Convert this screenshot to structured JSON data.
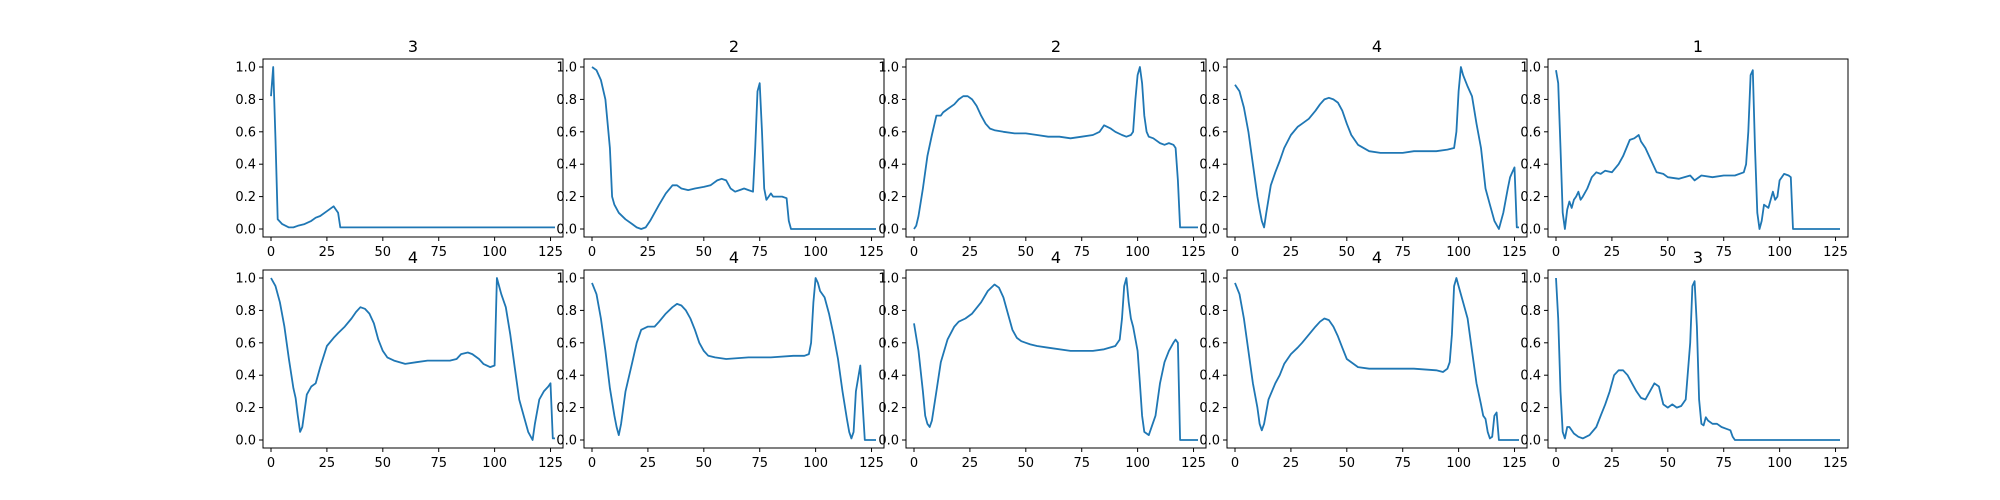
{
  "figure": {
    "line_color": "#1f77b4",
    "axes_color": "#000000"
  },
  "chart_data": [
    {
      "type": "line",
      "title": "3",
      "xlim": [
        0,
        127
      ],
      "ylim": [
        0,
        1
      ],
      "x_ticks": [
        "0",
        "25",
        "50",
        "75",
        "100",
        "125"
      ],
      "y_ticks": [
        "0.0",
        "0.2",
        "0.4",
        "0.6",
        "0.8",
        "1.0"
      ],
      "x": [
        0,
        1,
        2,
        3,
        5,
        8,
        10,
        12,
        15,
        18,
        20,
        22,
        25,
        28,
        29,
        30,
        31,
        33,
        40,
        50,
        60,
        70,
        80,
        90,
        100,
        110,
        120,
        127
      ],
      "y": [
        0.82,
        1.0,
        0.55,
        0.06,
        0.03,
        0.01,
        0.01,
        0.02,
        0.03,
        0.05,
        0.07,
        0.08,
        0.11,
        0.14,
        0.12,
        0.1,
        0.01,
        0.01,
        0.01,
        0.01,
        0.01,
        0.01,
        0.01,
        0.01,
        0.01,
        0.01,
        0.01,
        0.01
      ]
    },
    {
      "type": "line",
      "title": "2",
      "xlim": [
        0,
        127
      ],
      "ylim": [
        0,
        1
      ],
      "x_ticks": [
        "0",
        "25",
        "50",
        "75",
        "100",
        "125"
      ],
      "y_ticks": [
        "0.0",
        "0.2",
        "0.4",
        "0.6",
        "0.8",
        "1.0"
      ],
      "x": [
        0,
        2,
        4,
        6,
        8,
        9,
        10,
        12,
        15,
        18,
        20,
        22,
        24,
        26,
        28,
        30,
        33,
        36,
        38,
        40,
        43,
        46,
        50,
        53,
        56,
        58,
        60,
        62,
        64,
        66,
        68,
        70,
        72,
        73,
        74,
        75,
        76,
        77,
        78,
        79,
        80,
        81,
        83,
        85,
        87,
        88,
        89,
        95,
        100,
        110,
        120,
        127
      ],
      "y": [
        1.0,
        0.98,
        0.92,
        0.8,
        0.5,
        0.2,
        0.15,
        0.1,
        0.06,
        0.03,
        0.01,
        0.0,
        0.01,
        0.05,
        0.1,
        0.15,
        0.22,
        0.27,
        0.27,
        0.25,
        0.24,
        0.25,
        0.26,
        0.27,
        0.3,
        0.31,
        0.3,
        0.25,
        0.23,
        0.24,
        0.25,
        0.24,
        0.23,
        0.5,
        0.85,
        0.9,
        0.6,
        0.25,
        0.18,
        0.2,
        0.22,
        0.2,
        0.2,
        0.2,
        0.19,
        0.05,
        0.0,
        0.0,
        0.0,
        0.0,
        0.0,
        0.0
      ]
    },
    {
      "type": "line",
      "title": "2",
      "xlim": [
        0,
        127
      ],
      "ylim": [
        0,
        1
      ],
      "x_ticks": [
        "0",
        "25",
        "50",
        "75",
        "100",
        "125"
      ],
      "y_ticks": [
        "0.0",
        "0.2",
        "0.4",
        "0.6",
        "0.8",
        "1.0"
      ],
      "x": [
        0,
        1,
        2,
        4,
        6,
        8,
        10,
        12,
        13,
        15,
        18,
        20,
        22,
        24,
        26,
        28,
        30,
        32,
        34,
        36,
        40,
        45,
        50,
        55,
        60,
        65,
        70,
        75,
        80,
        83,
        85,
        88,
        90,
        93,
        95,
        97,
        98,
        99,
        100,
        101,
        102,
        103,
        104,
        105,
        107,
        110,
        112,
        114,
        116,
        117,
        118,
        119,
        120,
        122,
        125,
        127
      ],
      "y": [
        0.0,
        0.02,
        0.08,
        0.25,
        0.45,
        0.58,
        0.7,
        0.7,
        0.72,
        0.74,
        0.77,
        0.8,
        0.82,
        0.82,
        0.8,
        0.76,
        0.7,
        0.65,
        0.62,
        0.61,
        0.6,
        0.59,
        0.59,
        0.58,
        0.57,
        0.57,
        0.56,
        0.57,
        0.58,
        0.6,
        0.64,
        0.62,
        0.6,
        0.58,
        0.57,
        0.58,
        0.6,
        0.8,
        0.95,
        1.0,
        0.9,
        0.7,
        0.6,
        0.57,
        0.56,
        0.53,
        0.52,
        0.53,
        0.52,
        0.5,
        0.3,
        0.01,
        0.01,
        0.01,
        0.01,
        0.01
      ]
    },
    {
      "type": "line",
      "title": "4",
      "xlim": [
        0,
        127
      ],
      "ylim": [
        0,
        1
      ],
      "x_ticks": [
        "0",
        "25",
        "50",
        "75",
        "100",
        "125"
      ],
      "y_ticks": [
        "0.0",
        "0.2",
        "0.4",
        "0.6",
        "0.8",
        "1.0"
      ],
      "x": [
        0,
        2,
        4,
        6,
        8,
        10,
        11,
        12,
        13,
        14,
        16,
        18,
        20,
        22,
        25,
        28,
        30,
        33,
        36,
        38,
        40,
        42,
        44,
        46,
        48,
        50,
        52,
        55,
        60,
        65,
        70,
        75,
        80,
        85,
        90,
        95,
        98,
        99,
        100,
        101,
        102,
        104,
        106,
        108,
        110,
        112,
        114,
        116,
        118,
        120,
        122,
        123,
        124,
        125,
        126,
        127
      ],
      "y": [
        0.89,
        0.85,
        0.75,
        0.6,
        0.4,
        0.2,
        0.12,
        0.05,
        0.01,
        0.1,
        0.27,
        0.35,
        0.42,
        0.5,
        0.58,
        0.63,
        0.65,
        0.68,
        0.73,
        0.77,
        0.8,
        0.81,
        0.8,
        0.78,
        0.73,
        0.65,
        0.58,
        0.52,
        0.48,
        0.47,
        0.47,
        0.47,
        0.48,
        0.48,
        0.48,
        0.49,
        0.5,
        0.6,
        0.85,
        1.0,
        0.95,
        0.88,
        0.82,
        0.65,
        0.5,
        0.25,
        0.15,
        0.05,
        0.0,
        0.1,
        0.25,
        0.32,
        0.35,
        0.38,
        0.01,
        0.01
      ]
    },
    {
      "type": "line",
      "title": "1",
      "xlim": [
        0,
        127
      ],
      "ylim": [
        0,
        1
      ],
      "x_ticks": [
        "0",
        "25",
        "50",
        "75",
        "100",
        "125"
      ],
      "y_ticks": [
        "0.0",
        "0.2",
        "0.4",
        "0.6",
        "0.8",
        "1.0"
      ],
      "x": [
        0,
        1,
        2,
        3,
        4,
        5,
        6,
        7,
        8,
        9,
        10,
        11,
        12,
        14,
        16,
        18,
        20,
        22,
        25,
        28,
        30,
        33,
        35,
        37,
        38,
        40,
        42,
        45,
        48,
        50,
        55,
        60,
        62,
        65,
        70,
        75,
        80,
        84,
        85,
        86,
        87,
        88,
        89,
        90,
        91,
        92,
        93,
        95,
        97,
        98,
        99,
        100,
        102,
        104,
        105,
        106,
        110,
        120,
        127
      ],
      "y": [
        0.98,
        0.9,
        0.5,
        0.1,
        0.0,
        0.12,
        0.17,
        0.13,
        0.18,
        0.2,
        0.23,
        0.18,
        0.2,
        0.25,
        0.32,
        0.35,
        0.34,
        0.36,
        0.35,
        0.4,
        0.45,
        0.55,
        0.56,
        0.58,
        0.54,
        0.5,
        0.44,
        0.35,
        0.34,
        0.32,
        0.31,
        0.33,
        0.3,
        0.33,
        0.32,
        0.33,
        0.33,
        0.35,
        0.4,
        0.6,
        0.95,
        0.98,
        0.5,
        0.1,
        0.0,
        0.05,
        0.15,
        0.13,
        0.23,
        0.18,
        0.2,
        0.3,
        0.34,
        0.33,
        0.32,
        0.0,
        0.0,
        0.0,
        0.0
      ]
    },
    {
      "type": "line",
      "title": "4",
      "xlim": [
        0,
        127
      ],
      "ylim": [
        0,
        1
      ],
      "x_ticks": [
        "0",
        "25",
        "50",
        "75",
        "100",
        "125"
      ],
      "y_ticks": [
        "0.0",
        "0.2",
        "0.4",
        "0.6",
        "0.8",
        "1.0"
      ],
      "x": [
        0,
        2,
        4,
        6,
        8,
        10,
        11,
        12,
        13,
        14,
        16,
        18,
        20,
        22,
        25,
        28,
        30,
        33,
        36,
        38,
        40,
        42,
        44,
        46,
        48,
        50,
        52,
        55,
        60,
        65,
        70,
        75,
        80,
        83,
        85,
        88,
        90,
        93,
        95,
        98,
        100,
        101,
        102,
        103,
        105,
        107,
        109,
        111,
        113,
        115,
        117,
        118,
        120,
        122,
        124,
        125,
        126,
        127
      ],
      "y": [
        1.0,
        0.95,
        0.85,
        0.7,
        0.5,
        0.32,
        0.26,
        0.15,
        0.05,
        0.08,
        0.28,
        0.33,
        0.35,
        0.45,
        0.58,
        0.63,
        0.66,
        0.7,
        0.75,
        0.79,
        0.82,
        0.81,
        0.78,
        0.72,
        0.62,
        0.55,
        0.51,
        0.49,
        0.47,
        0.48,
        0.49,
        0.49,
        0.49,
        0.5,
        0.53,
        0.54,
        0.53,
        0.5,
        0.47,
        0.45,
        0.46,
        1.0,
        0.95,
        0.9,
        0.82,
        0.65,
        0.45,
        0.25,
        0.15,
        0.05,
        0.0,
        0.1,
        0.25,
        0.3,
        0.33,
        0.35,
        0.01,
        0.01
      ]
    },
    {
      "type": "line",
      "title": "4",
      "xlim": [
        0,
        127
      ],
      "ylim": [
        0,
        1
      ],
      "x_ticks": [
        "0",
        "25",
        "50",
        "75",
        "100",
        "125"
      ],
      "y_ticks": [
        "0.0",
        "0.2",
        "0.4",
        "0.6",
        "0.8",
        "1.0"
      ],
      "x": [
        0,
        2,
        4,
        6,
        8,
        10,
        11,
        12,
        13,
        15,
        18,
        20,
        22,
        25,
        28,
        30,
        33,
        36,
        38,
        40,
        42,
        44,
        46,
        48,
        50,
        52,
        55,
        60,
        70,
        80,
        90,
        95,
        97,
        98,
        99,
        100,
        101,
        102,
        104,
        106,
        108,
        110,
        112,
        114,
        115,
        116,
        117,
        118,
        119,
        120,
        122,
        125,
        127
      ],
      "y": [
        0.97,
        0.9,
        0.75,
        0.55,
        0.32,
        0.15,
        0.08,
        0.03,
        0.1,
        0.3,
        0.48,
        0.6,
        0.68,
        0.7,
        0.7,
        0.73,
        0.78,
        0.82,
        0.84,
        0.83,
        0.8,
        0.75,
        0.68,
        0.6,
        0.55,
        0.52,
        0.51,
        0.5,
        0.51,
        0.51,
        0.52,
        0.52,
        0.53,
        0.6,
        0.85,
        1.0,
        0.97,
        0.92,
        0.88,
        0.78,
        0.65,
        0.5,
        0.3,
        0.13,
        0.05,
        0.01,
        0.05,
        0.3,
        0.38,
        0.46,
        0.0,
        0.0,
        0.0
      ]
    },
    {
      "type": "line",
      "title": "4",
      "xlim": [
        0,
        127
      ],
      "ylim": [
        0,
        1
      ],
      "x_ticks": [
        "0",
        "25",
        "50",
        "75",
        "100",
        "125"
      ],
      "y_ticks": [
        "0.0",
        "0.2",
        "0.4",
        "0.6",
        "0.8",
        "1.0"
      ],
      "x": [
        0,
        2,
        4,
        5,
        6,
        7,
        8,
        10,
        12,
        15,
        18,
        20,
        23,
        26,
        30,
        33,
        36,
        38,
        40,
        42,
        44,
        46,
        48,
        50,
        52,
        55,
        60,
        70,
        80,
        85,
        90,
        92,
        93,
        94,
        95,
        96,
        97,
        98,
        100,
        101,
        102,
        103,
        105,
        108,
        110,
        112,
        114,
        116,
        117,
        118,
        119,
        120,
        125,
        127
      ],
      "y": [
        0.72,
        0.55,
        0.3,
        0.15,
        0.1,
        0.08,
        0.12,
        0.3,
        0.48,
        0.62,
        0.7,
        0.73,
        0.75,
        0.78,
        0.85,
        0.92,
        0.96,
        0.94,
        0.88,
        0.78,
        0.68,
        0.63,
        0.61,
        0.6,
        0.59,
        0.58,
        0.57,
        0.55,
        0.55,
        0.56,
        0.58,
        0.62,
        0.75,
        0.95,
        1.0,
        0.85,
        0.75,
        0.7,
        0.55,
        0.35,
        0.15,
        0.05,
        0.03,
        0.15,
        0.35,
        0.48,
        0.55,
        0.6,
        0.62,
        0.6,
        0.0,
        0.0,
        0.0,
        0.0
      ]
    },
    {
      "type": "line",
      "title": "4",
      "xlim": [
        0,
        127
      ],
      "ylim": [
        0,
        1
      ],
      "x_ticks": [
        "0",
        "25",
        "50",
        "75",
        "100",
        "125"
      ],
      "y_ticks": [
        "0.0",
        "0.2",
        "0.4",
        "0.6",
        "0.8",
        "1.0"
      ],
      "x": [
        0,
        2,
        4,
        6,
        8,
        10,
        11,
        12,
        13,
        15,
        18,
        20,
        22,
        25,
        28,
        30,
        33,
        36,
        38,
        40,
        42,
        44,
        46,
        48,
        50,
        55,
        60,
        70,
        80,
        90,
        93,
        95,
        96,
        97,
        98,
        99,
        100,
        102,
        104,
        106,
        108,
        110,
        111,
        112,
        113,
        114,
        115,
        116,
        117,
        118,
        120,
        125,
        127
      ],
      "y": [
        0.97,
        0.9,
        0.75,
        0.55,
        0.35,
        0.2,
        0.1,
        0.06,
        0.1,
        0.25,
        0.35,
        0.4,
        0.47,
        0.53,
        0.57,
        0.6,
        0.65,
        0.7,
        0.73,
        0.75,
        0.74,
        0.7,
        0.64,
        0.57,
        0.5,
        0.45,
        0.44,
        0.44,
        0.44,
        0.43,
        0.42,
        0.44,
        0.48,
        0.65,
        0.95,
        1.0,
        0.95,
        0.85,
        0.75,
        0.55,
        0.35,
        0.22,
        0.15,
        0.13,
        0.05,
        0.01,
        0.02,
        0.15,
        0.17,
        0.0,
        0.0,
        0.0,
        0.0
      ]
    },
    {
      "type": "line",
      "title": "3",
      "xlim": [
        0,
        127
      ],
      "ylim": [
        0,
        1
      ],
      "x_ticks": [
        "0",
        "25",
        "50",
        "75",
        "100",
        "125"
      ],
      "y_ticks": [
        "0.0",
        "0.2",
        "0.4",
        "0.6",
        "0.8",
        "1.0"
      ],
      "x": [
        0,
        1,
        2,
        3,
        4,
        5,
        6,
        8,
        10,
        12,
        15,
        18,
        20,
        22,
        24,
        26,
        28,
        30,
        32,
        34,
        36,
        38,
        40,
        42,
        44,
        46,
        48,
        50,
        52,
        54,
        56,
        58,
        60,
        61,
        62,
        63,
        64,
        65,
        66,
        67,
        68,
        70,
        72,
        74,
        76,
        78,
        79,
        80,
        85,
        90,
        100,
        110,
        120,
        127
      ],
      "y": [
        1.0,
        0.75,
        0.3,
        0.05,
        0.01,
        0.08,
        0.08,
        0.04,
        0.02,
        0.01,
        0.03,
        0.08,
        0.15,
        0.22,
        0.3,
        0.4,
        0.43,
        0.43,
        0.4,
        0.35,
        0.3,
        0.26,
        0.25,
        0.3,
        0.35,
        0.33,
        0.22,
        0.2,
        0.22,
        0.2,
        0.21,
        0.25,
        0.6,
        0.95,
        0.98,
        0.7,
        0.25,
        0.1,
        0.09,
        0.14,
        0.12,
        0.1,
        0.1,
        0.08,
        0.07,
        0.06,
        0.02,
        0.0,
        0.0,
        0.0,
        0.0,
        0.0,
        0.0,
        0.0
      ]
    }
  ]
}
